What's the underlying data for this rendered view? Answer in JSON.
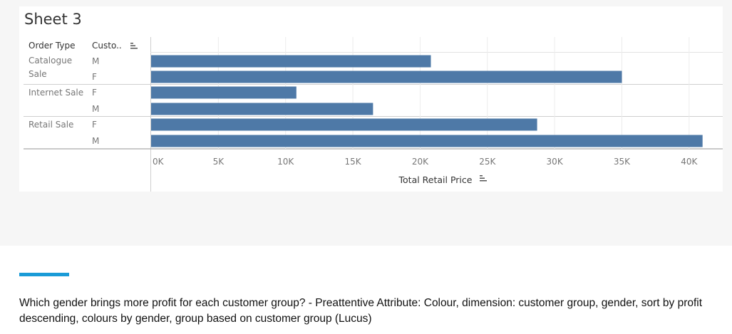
{
  "sheet_title": "Sheet 3",
  "headers": {
    "order_type": "Order Type",
    "customer": "Custo.."
  },
  "colors": {
    "bar": "#4e79a7",
    "accent": "#1a9bd7"
  },
  "chart_data": {
    "type": "bar",
    "orientation": "horizontal",
    "xlabel": "Total Retail Price",
    "xlim": [
      0,
      42500
    ],
    "tick_values": [
      0,
      5000,
      10000,
      15000,
      20000,
      25000,
      30000,
      35000,
      40000
    ],
    "tick_labels": [
      "0K",
      "5K",
      "10K",
      "15K",
      "20K",
      "25K",
      "30K",
      "35K",
      "40K"
    ],
    "groups": [
      {
        "name": "Catalogue Sale",
        "rows": [
          {
            "gender": "M",
            "value": 20800
          },
          {
            "gender": "F",
            "value": 35000
          }
        ]
      },
      {
        "name": "Internet Sale",
        "rows": [
          {
            "gender": "F",
            "value": 10800
          },
          {
            "gender": "M",
            "value": 16500
          }
        ]
      },
      {
        "name": "Retail Sale",
        "rows": [
          {
            "gender": "F",
            "value": 28700
          },
          {
            "gender": "M",
            "value": 41000
          }
        ]
      }
    ],
    "grid": true
  },
  "caption": "Which gender brings more profit for each customer group? - Preattentive Attribute: Colour, dimension: customer group, gender, sort by profit descending, colours by gender, group based on customer group (Lucus)"
}
